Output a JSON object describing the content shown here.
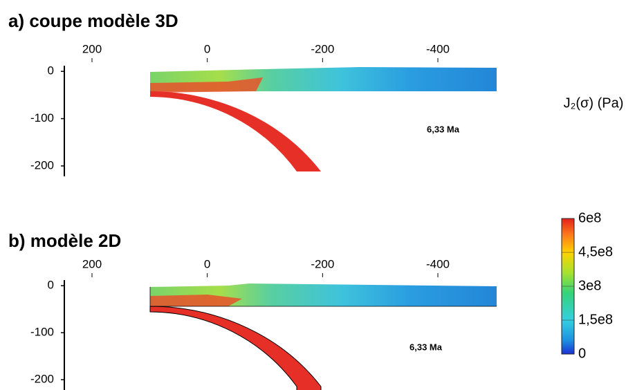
{
  "panels": [
    {
      "title": "a) coupe modèle 3D",
      "age": "6,33 Ma",
      "xlim": [
        248,
        -502
      ],
      "xticks": [
        200,
        0,
        -200,
        -400
      ],
      "ylim": [
        12,
        -222
      ],
      "yticks": [
        0,
        -100,
        -200
      ]
    },
    {
      "title": "b) modèle 2D",
      "age": "6,33 Ma",
      "xlim": [
        248,
        -502
      ],
      "xticks": [
        200,
        0,
        -200,
        -400
      ],
      "ylim": [
        12,
        -222
      ],
      "yticks": [
        0,
        -100,
        -200
      ]
    }
  ],
  "colorbar": {
    "title": "J₂(σ) (Pa)",
    "lim": [
      0,
      600000000
    ],
    "ticks": [
      0,
      {
        "value": 150000000,
        "label": "1,5e8"
      },
      {
        "value": 300000000,
        "label": "3e8"
      },
      {
        "value": 450000000,
        "label": "4,5e8"
      },
      {
        "value": 600000000,
        "label": "6e8"
      }
    ]
  }
}
